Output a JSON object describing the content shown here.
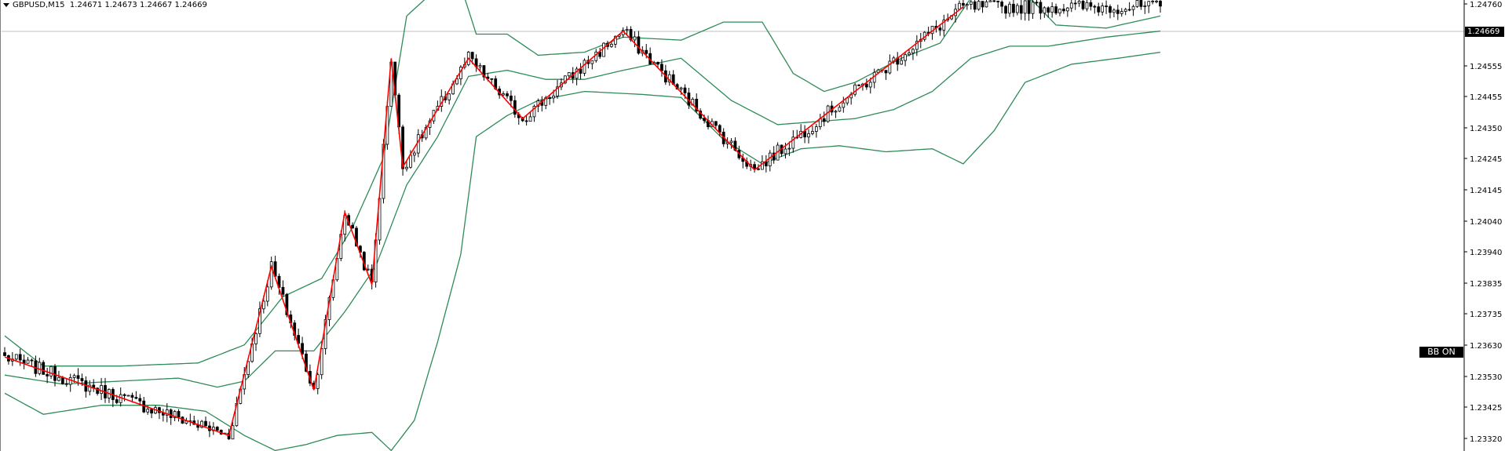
{
  "header": {
    "symbol": "GBPUSD,M15",
    "ohlc": "1.24671 1.24673 1.24667 1.24669"
  },
  "current_price_label": "1.24669",
  "indicator_badge": "BB ON",
  "colors": {
    "background": "#ffffff",
    "candle": "#000000",
    "bollinger": "#2e8b57",
    "zigzag": "#ff0000",
    "price_line": "#c0c0c0"
  },
  "chart_data": {
    "type": "line",
    "title": "GBPUSD,M15",
    "xlabel": "",
    "ylabel": "",
    "y_ticks": [
      "1.24760",
      "1.24555",
      "1.24455",
      "1.24350",
      "1.24245",
      "1.24145",
      "1.24040",
      "1.23940",
      "1.23835",
      "1.23735",
      "1.23630",
      "1.23530",
      "1.23425",
      "1.23320"
    ],
    "ylim": [
      1.2328,
      1.2478
    ],
    "current_price": 1.24669,
    "grid": false,
    "candle_count": 300,
    "series": [
      {
        "name": "",
        "type": "zigzag",
        "points": [
          [
            0,
            1.2359
          ],
          [
            58,
            1.2333
          ],
          [
            69,
            1.2389
          ],
          [
            80,
            1.2348
          ],
          [
            88,
            1.2407
          ],
          [
            95,
            1.2383
          ],
          [
            100,
            1.2458
          ],
          [
            103,
            1.2422
          ],
          [
            120,
            1.2458
          ],
          [
            134,
            1.2438
          ],
          [
            160,
            1.2467
          ],
          [
            194,
            1.2421
          ],
          [
            248,
            1.2475
          ]
        ]
      },
      {
        "name": "",
        "type": "bollinger-upper",
        "points": [
          [
            0,
            1.2366
          ],
          [
            10,
            1.2356
          ],
          [
            30,
            1.2356
          ],
          [
            50,
            1.2357
          ],
          [
            62,
            1.2363
          ],
          [
            72,
            1.2379
          ],
          [
            82,
            1.2385
          ],
          [
            90,
            1.2402
          ],
          [
            98,
            1.2425
          ],
          [
            104,
            1.2472
          ],
          [
            110,
            1.2479
          ],
          [
            118,
            1.2482
          ],
          [
            122,
            1.2466
          ],
          [
            130,
            1.2466
          ],
          [
            138,
            1.2459
          ],
          [
            150,
            1.246
          ],
          [
            160,
            1.2465
          ],
          [
            175,
            1.2464
          ],
          [
            186,
            1.247
          ],
          [
            196,
            1.247
          ],
          [
            204,
            1.2453
          ],
          [
            212,
            1.2447
          ],
          [
            220,
            1.245
          ],
          [
            232,
            1.2458
          ],
          [
            242,
            1.2463
          ],
          [
            250,
            1.2478
          ],
          [
            258,
            1.2479
          ],
          [
            266,
            1.2477
          ],
          [
            272,
            1.2469
          ],
          [
            285,
            1.2468
          ],
          [
            299,
            1.2472
          ]
        ]
      },
      {
        "name": "",
        "type": "bollinger-middle",
        "points": [
          [
            0,
            1.2353
          ],
          [
            15,
            1.235
          ],
          [
            30,
            1.2351
          ],
          [
            45,
            1.2352
          ],
          [
            55,
            1.2349
          ],
          [
            62,
            1.2351
          ],
          [
            70,
            1.2361
          ],
          [
            80,
            1.2361
          ],
          [
            88,
            1.2374
          ],
          [
            96,
            1.2389
          ],
          [
            104,
            1.2416
          ],
          [
            112,
            1.2432
          ],
          [
            120,
            1.2452
          ],
          [
            130,
            1.2454
          ],
          [
            140,
            1.2451
          ],
          [
            150,
            1.2451
          ],
          [
            160,
            1.2454
          ],
          [
            175,
            1.2458
          ],
          [
            188,
            1.2444
          ],
          [
            200,
            1.2436
          ],
          [
            210,
            1.2437
          ],
          [
            220,
            1.2438
          ],
          [
            230,
            1.2441
          ],
          [
            240,
            1.2447
          ],
          [
            250,
            1.2458
          ],
          [
            260,
            1.2462
          ],
          [
            270,
            1.2462
          ],
          [
            285,
            1.2465
          ],
          [
            299,
            1.2467
          ]
        ]
      },
      {
        "name": "",
        "type": "bollinger-lower",
        "points": [
          [
            0,
            1.2347
          ],
          [
            10,
            1.234
          ],
          [
            25,
            1.2343
          ],
          [
            40,
            1.2343
          ],
          [
            52,
            1.2341
          ],
          [
            62,
            1.2333
          ],
          [
            70,
            1.2328
          ],
          [
            78,
            1.233
          ],
          [
            86,
            1.2333
          ],
          [
            95,
            1.2334
          ],
          [
            100,
            1.2328
          ],
          [
            106,
            1.2338
          ],
          [
            112,
            1.2364
          ],
          [
            118,
            1.2393
          ],
          [
            122,
            1.2432
          ],
          [
            130,
            1.2439
          ],
          [
            138,
            1.2444
          ],
          [
            150,
            1.2447
          ],
          [
            165,
            1.2446
          ],
          [
            175,
            1.2445
          ],
          [
            186,
            1.2431
          ],
          [
            196,
            1.2423
          ],
          [
            206,
            1.2428
          ],
          [
            216,
            1.2429
          ],
          [
            228,
            1.2427
          ],
          [
            240,
            1.2428
          ],
          [
            248,
            1.2423
          ],
          [
            256,
            1.2434
          ],
          [
            264,
            1.245
          ],
          [
            276,
            1.2456
          ],
          [
            288,
            1.2458
          ],
          [
            299,
            1.246
          ]
        ]
      }
    ]
  }
}
